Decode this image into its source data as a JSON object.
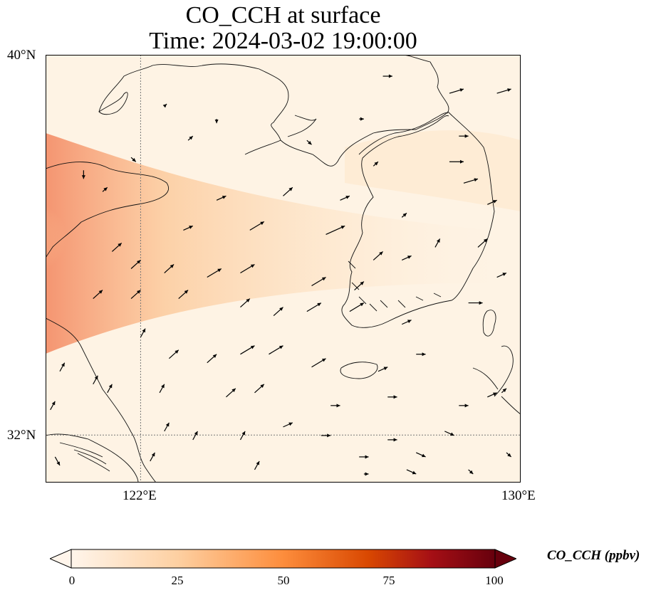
{
  "title": {
    "line1": "CO_CCH at surface",
    "line2": "Time: 2024-03-02 19:00:00"
  },
  "axes": {
    "lat_labels": [
      "40°N",
      "32°N"
    ],
    "lon_labels": [
      "122°E",
      "130°E"
    ],
    "extent": {
      "lon_min": 120,
      "lon_max": 130,
      "lat_min": 31,
      "lat_max": 40
    },
    "gridlines": {
      "lon": [
        122
      ],
      "lat": [
        32
      ]
    }
  },
  "colorbar": {
    "label": "CO_CCH (ppbv)",
    "ticks": [
      "0",
      "25",
      "50",
      "75",
      "100"
    ],
    "range": [
      0,
      100
    ],
    "colormap": [
      "#fff5eb",
      "#fdd0a2",
      "#fd8d3c",
      "#d94801",
      "#a50f15",
      "#67000d"
    ],
    "extend": "both"
  },
  "field": {
    "background": "#fef3e4",
    "plume_colors": [
      "#fde0bf",
      "#fcc898",
      "#f9a27a",
      "#f4906b"
    ]
  },
  "wind_vectors": [
    [
      0.71,
      0.05,
      0.02,
      0
    ],
    [
      0.85,
      0.09,
      0.03,
      0.01
    ],
    [
      0.95,
      0.09,
      0.03,
      0.01
    ],
    [
      0.66,
      0.15,
      0.01,
      0
    ],
    [
      0.87,
      0.19,
      0.02,
      0
    ],
    [
      0.25,
      0.12,
      0.005,
      0.005
    ],
    [
      0.36,
      0.15,
      0,
      -0.01
    ],
    [
      0.55,
      0.2,
      0.01,
      -0.01
    ],
    [
      0.3,
      0.2,
      0.01,
      0.01
    ],
    [
      0.18,
      0.24,
      0.01,
      -0.01
    ],
    [
      0.08,
      0.27,
      0,
      -0.02
    ],
    [
      0.12,
      0.32,
      0.01,
      0.01
    ],
    [
      0.36,
      0.34,
      0.02,
      0.01
    ],
    [
      0.5,
      0.33,
      0.02,
      0.02
    ],
    [
      0.69,
      0.26,
      0.01,
      0.01
    ],
    [
      0.85,
      0.25,
      0.03,
      0
    ],
    [
      0.88,
      0.3,
      0.03,
      0.01
    ],
    [
      0.62,
      0.34,
      0.02,
      0.01
    ],
    [
      0.75,
      0.38,
      0.01,
      0.01
    ],
    [
      0.93,
      0.35,
      0.02,
      0.01
    ],
    [
      0.29,
      0.41,
      0.02,
      0.01
    ],
    [
      0.43,
      0.41,
      0.03,
      0.02
    ],
    [
      0.59,
      0.42,
      0.04,
      0.02
    ],
    [
      0.69,
      0.48,
      0.02,
      0.02
    ],
    [
      0.82,
      0.45,
      0.01,
      0.02
    ],
    [
      0.91,
      0.45,
      0.02,
      0.02
    ],
    [
      0.14,
      0.46,
      0.02,
      0.02
    ],
    [
      0.18,
      0.5,
      0.02,
      0.02
    ],
    [
      0.25,
      0.51,
      0.02,
      0.02
    ],
    [
      0.34,
      0.52,
      0.03,
      0.02
    ],
    [
      0.41,
      0.51,
      0.03,
      0.02
    ],
    [
      0.56,
      0.54,
      0.03,
      0.02
    ],
    [
      0.65,
      0.55,
      0.02,
      0.02
    ],
    [
      0.75,
      0.48,
      0.02,
      0.01
    ],
    [
      0.1,
      0.57,
      0.02,
      0.02
    ],
    [
      0.18,
      0.57,
      0.02,
      0.02
    ],
    [
      0.28,
      0.57,
      0.02,
      0.02
    ],
    [
      0.41,
      0.59,
      0.02,
      0.02
    ],
    [
      0.48,
      0.61,
      0.02,
      0.02
    ],
    [
      0.55,
      0.6,
      0.03,
      0.02
    ],
    [
      0.64,
      0.6,
      0.03,
      0.02
    ],
    [
      0.75,
      0.63,
      0.02,
      0.01
    ],
    [
      0.89,
      0.58,
      0.03,
      0
    ],
    [
      0.95,
      0.52,
      0.02,
      0.01
    ],
    [
      0.2,
      0.66,
      0.01,
      0.02
    ],
    [
      0.26,
      0.71,
      0.02,
      0.02
    ],
    [
      0.34,
      0.72,
      0.02,
      0.02
    ],
    [
      0.41,
      0.7,
      0.03,
      0.02
    ],
    [
      0.47,
      0.7,
      0.03,
      0.02
    ],
    [
      0.56,
      0.73,
      0.03,
      0.02
    ],
    [
      0.7,
      0.74,
      0.02,
      0.01
    ],
    [
      0.78,
      0.7,
      0.02,
      0
    ],
    [
      0.03,
      0.74,
      0.01,
      0.02
    ],
    [
      0.1,
      0.77,
      0.01,
      0.02
    ],
    [
      0.13,
      0.79,
      0.01,
      0.02
    ],
    [
      0.24,
      0.79,
      0.01,
      0.02
    ],
    [
      0.38,
      0.8,
      0.02,
      0.02
    ],
    [
      0.44,
      0.79,
      0.02,
      0.02
    ],
    [
      0.6,
      0.82,
      0.02,
      0
    ],
    [
      0.72,
      0.8,
      0.02,
      0
    ],
    [
      0.87,
      0.82,
      0.02,
      0
    ],
    [
      0.93,
      0.8,
      0.02,
      0.01
    ],
    [
      0.96,
      0.79,
      0.01,
      0.01
    ],
    [
      0.01,
      0.83,
      0.01,
      0.02
    ],
    [
      0.25,
      0.88,
      0.01,
      0.02
    ],
    [
      0.31,
      0.9,
      0.01,
      0.02
    ],
    [
      0.41,
      0.9,
      0.01,
      0.02
    ],
    [
      0.5,
      0.87,
      0.02,
      0.01
    ],
    [
      0.58,
      0.89,
      0.02,
      0
    ],
    [
      0.72,
      0.9,
      0.02,
      0
    ],
    [
      0.84,
      0.88,
      0.02,
      -0.01
    ],
    [
      0.78,
      0.93,
      0.02,
      -0.01
    ],
    [
      0.66,
      0.94,
      0.02,
      0
    ],
    [
      0.02,
      0.94,
      0.01,
      -0.02
    ],
    [
      0.22,
      0.95,
      0.01,
      0.02
    ],
    [
      0.44,
      0.97,
      0.01,
      0.02
    ],
    [
      0.67,
      0.98,
      0.01,
      0
    ],
    [
      0.76,
      0.97,
      0.02,
      -0.01
    ],
    [
      0.89,
      0.97,
      0.01,
      -0.01
    ],
    [
      0.97,
      0.93,
      0.01,
      -0.01
    ]
  ]
}
